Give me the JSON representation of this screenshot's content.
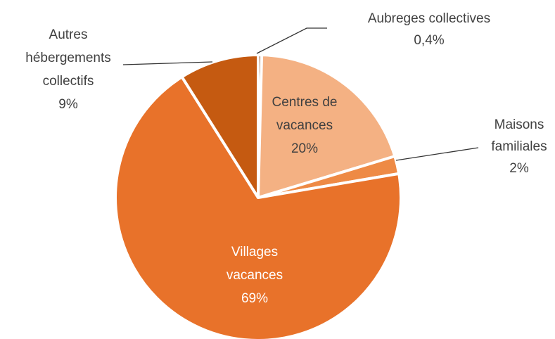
{
  "chart_data": {
    "type": "pie",
    "categories": [
      "Aubreges collectives",
      "Centres de vacances",
      "Maisons familiales",
      "Villages vacances",
      "Autres hébergements collectifs"
    ],
    "values": [
      0.4,
      20,
      2,
      69,
      9
    ],
    "value_labels": [
      "0,4%",
      "20%",
      "2%",
      "69%",
      "9%"
    ],
    "colors": [
      "#843c0c",
      "#f4b183",
      "#ee8a45",
      "#e8722a",
      "#c55a11"
    ]
  }
}
